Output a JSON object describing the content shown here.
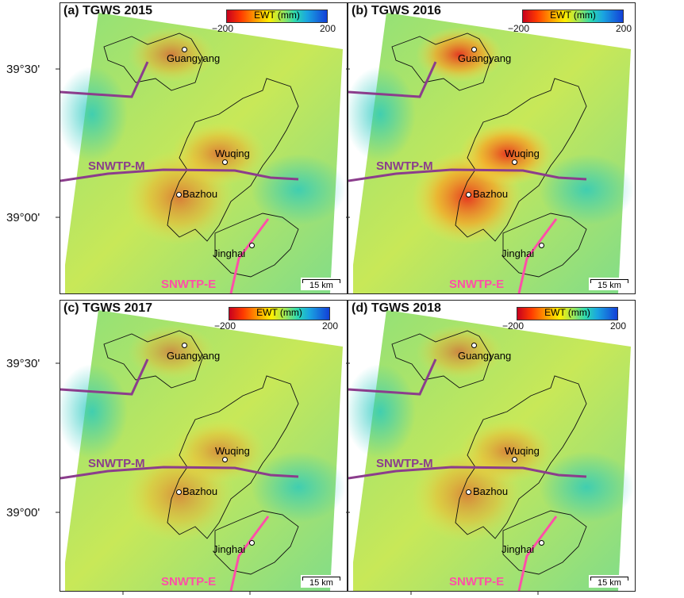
{
  "y_axis": {
    "tick_top": "39°30'",
    "tick_bottom": "39°00'"
  },
  "colorbar": {
    "label": "EWT (mm)",
    "min": "−200",
    "max": "200"
  },
  "scale_bar": "15 km",
  "cities": {
    "guangyang": "Guangyang",
    "wuqing": "Wuqing",
    "bazhou": "Bazhou",
    "jinghai": "Jinghai"
  },
  "canals": {
    "middle": "SNWTP-M",
    "east": "SNWTP-E"
  },
  "colors": {
    "canal_middle": "#8b3d8c",
    "canal_east": "#ff4fa8"
  },
  "panels": [
    {
      "title": "(a) TGWS 2015"
    },
    {
      "title": "(b) TGWS 2016"
    },
    {
      "title": "(c) TGWS 2017"
    },
    {
      "title": "(d) TGWS 2018"
    }
  ]
}
